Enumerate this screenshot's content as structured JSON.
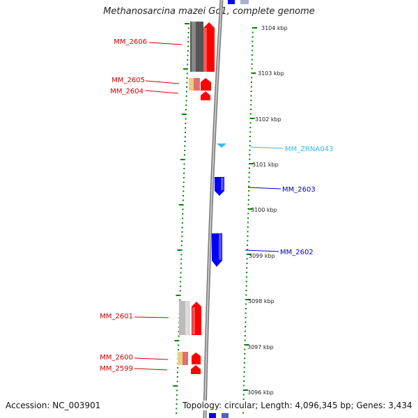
{
  "title": "Methanosarcina mazei Go1, complete genome",
  "accession": "Accession: NC_003901",
  "summary": "Topology: circular; Length: 4,096,345 bp; Genes: 3,434",
  "colors": {
    "forward_gene": "#ff0000",
    "reverse_gene": "#0000ff",
    "rna": "#33bbee",
    "tick": "#008000",
    "backbone": "#888888"
  },
  "scale_labels": [
    "3104 kbp",
    "3103 kbp",
    "3102 kbp",
    "3101 kbp",
    "3100 kbp",
    "3099 kbp",
    "3098 kbp",
    "3097 kbp",
    "3096 kbp"
  ],
  "genes": [
    {
      "id": "MM_2606",
      "strand": "forward"
    },
    {
      "id": "MM_2605",
      "strand": "forward"
    },
    {
      "id": "MM_2604",
      "strand": "forward"
    },
    {
      "id": "MM_ZRNA043",
      "strand": "rna"
    },
    {
      "id": "MM_2603",
      "strand": "reverse"
    },
    {
      "id": "MM_2602",
      "strand": "reverse"
    },
    {
      "id": "MM_2601",
      "strand": "forward"
    },
    {
      "id": "MM_2600",
      "strand": "forward"
    },
    {
      "id": "MM_2599",
      "strand": "forward"
    }
  ]
}
